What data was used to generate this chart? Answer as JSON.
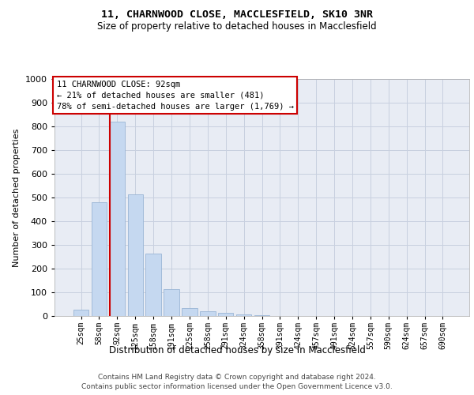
{
  "title1": "11, CHARNWOOD CLOSE, MACCLESFIELD, SK10 3NR",
  "title2": "Size of property relative to detached houses in Macclesfield",
  "xlabel": "Distribution of detached houses by size in Macclesfield",
  "ylabel": "Number of detached properties",
  "bar_labels": [
    "25sqm",
    "58sqm",
    "92sqm",
    "125sqm",
    "158sqm",
    "191sqm",
    "225sqm",
    "258sqm",
    "291sqm",
    "324sqm",
    "358sqm",
    "391sqm",
    "424sqm",
    "457sqm",
    "491sqm",
    "524sqm",
    "557sqm",
    "590sqm",
    "624sqm",
    "657sqm",
    "690sqm"
  ],
  "bar_values": [
    28,
    480,
    820,
    515,
    265,
    112,
    35,
    20,
    12,
    7,
    5,
    0,
    0,
    0,
    0,
    0,
    0,
    0,
    0,
    0,
    0
  ],
  "bar_color": "#c5d8f0",
  "bar_edge_color": "#9ab5d5",
  "property_bar_index": 2,
  "annotation_text": "11 CHARNWOOD CLOSE: 92sqm\n← 21% of detached houses are smaller (481)\n78% of semi-detached houses are larger (1,769) →",
  "vline_color": "#cc0000",
  "annotation_edge_color": "#cc0000",
  "ylim": [
    0,
    1000
  ],
  "yticks": [
    0,
    100,
    200,
    300,
    400,
    500,
    600,
    700,
    800,
    900,
    1000
  ],
  "grid_color": "#c8d0df",
  "bg_color": "#e8ecf4",
  "footer1": "Contains HM Land Registry data © Crown copyright and database right 2024.",
  "footer2": "Contains public sector information licensed under the Open Government Licence v3.0."
}
